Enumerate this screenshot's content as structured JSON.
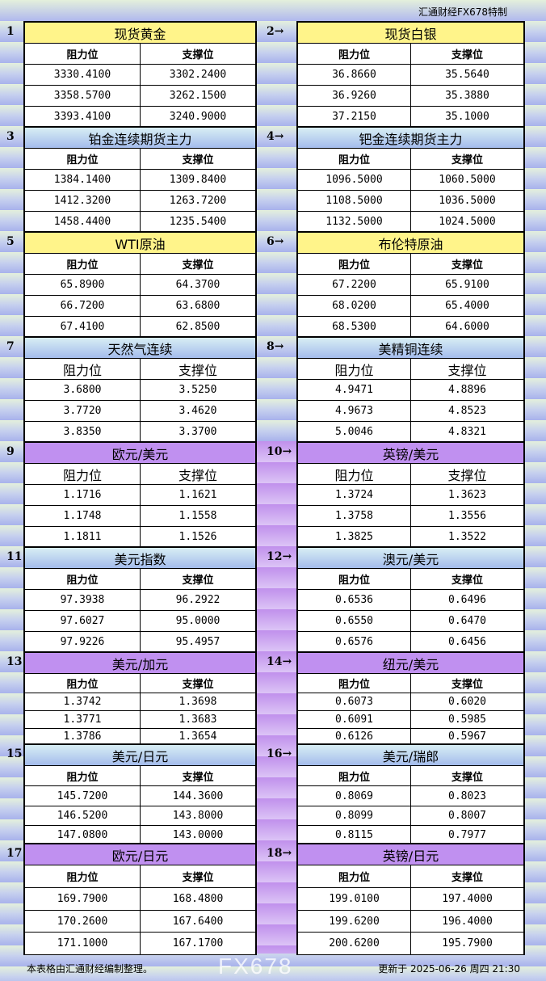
{
  "brand": "汇通财经FX678特制",
  "headers": {
    "resistance": "阻力位",
    "support": "支撑位"
  },
  "colors": {
    "yellow": "#fff48a",
    "blue": "#b4cbee",
    "purple": "#c090f0"
  },
  "sections": [
    {
      "num": "1",
      "title": "现货黄金",
      "color": "yellow",
      "rows": [
        [
          "3330.4100",
          "3302.2400"
        ],
        [
          "3358.5700",
          "3262.1500"
        ],
        [
          "3393.4100",
          "3240.9000"
        ]
      ]
    },
    {
      "num": "2→",
      "title": "现货白银",
      "color": "yellow",
      "rows": [
        [
          "36.8660",
          "35.5640"
        ],
        [
          "36.9260",
          "35.3880"
        ],
        [
          "37.2150",
          "35.1000"
        ]
      ]
    },
    {
      "num": "3",
      "title": "铂金连续期货主力",
      "color": "blue",
      "rows": [
        [
          "1384.1400",
          "1309.8400"
        ],
        [
          "1412.3200",
          "1263.7200"
        ],
        [
          "1458.4400",
          "1235.5400"
        ]
      ]
    },
    {
      "num": "4→",
      "title": "钯金连续期货主力",
      "color": "blue",
      "rows": [
        [
          "1096.5000",
          "1060.5000"
        ],
        [
          "1108.5000",
          "1036.5000"
        ],
        [
          "1132.5000",
          "1024.5000"
        ]
      ]
    },
    {
      "num": "5",
      "title": "WTI原油",
      "color": "yellow",
      "rows": [
        [
          "65.8900",
          "64.3700"
        ],
        [
          "66.7200",
          "63.6800"
        ],
        [
          "67.4100",
          "62.8500"
        ]
      ]
    },
    {
      "num": "6→",
      "title": "布伦特原油",
      "color": "yellow",
      "rows": [
        [
          "67.2200",
          "65.9100"
        ],
        [
          "68.0200",
          "65.4000"
        ],
        [
          "68.5300",
          "64.6000"
        ]
      ]
    },
    {
      "num": "7",
      "title": "天然气连续",
      "color": "blue",
      "rows": [
        [
          "3.6800",
          "3.5250"
        ],
        [
          "3.7720",
          "3.4620"
        ],
        [
          "3.8350",
          "3.3700"
        ]
      ]
    },
    {
      "num": "8→",
      "title": "美精铜连续",
      "color": "blue",
      "rows": [
        [
          "4.9471",
          "4.8896"
        ],
        [
          "4.9673",
          "4.8523"
        ],
        [
          "5.0046",
          "4.8321"
        ]
      ]
    },
    {
      "num": "9",
      "title": "欧元/美元",
      "color": "purple",
      "rows": [
        [
          "1.1716",
          "1.1621"
        ],
        [
          "1.1748",
          "1.1558"
        ],
        [
          "1.1811",
          "1.1526"
        ]
      ]
    },
    {
      "num": "10→",
      "title": "英镑/美元",
      "color": "purple",
      "rows": [
        [
          "1.3724",
          "1.3623"
        ],
        [
          "1.3758",
          "1.3556"
        ],
        [
          "1.3825",
          "1.3522"
        ]
      ]
    },
    {
      "num": "11",
      "title": "美元指数",
      "color": "blue",
      "rows": [
        [
          "97.3938",
          "96.2922"
        ],
        [
          "97.6027",
          "95.0000"
        ],
        [
          "97.9226",
          "95.4957"
        ]
      ]
    },
    {
      "num": "12→",
      "title": "澳元/美元",
      "color": "blue",
      "rows": [
        [
          "0.6536",
          "0.6496"
        ],
        [
          "0.6550",
          "0.6470"
        ],
        [
          "0.6576",
          "0.6456"
        ]
      ]
    },
    {
      "num": "13",
      "title": "美元/加元",
      "color": "purple",
      "rows": [
        [
          "1.3742",
          "1.3698"
        ],
        [
          "1.3771",
          "1.3683"
        ],
        [
          "1.3786",
          "1.3654"
        ]
      ]
    },
    {
      "num": "14→",
      "title": "纽元/美元",
      "color": "purple",
      "rows": [
        [
          "0.6073",
          "0.6020"
        ],
        [
          "0.6091",
          "0.5985"
        ],
        [
          "0.6126",
          "0.5967"
        ]
      ]
    },
    {
      "num": "15",
      "title": "美元/日元",
      "color": "blue",
      "rows": [
        [
          "145.7200",
          "144.3600"
        ],
        [
          "146.5200",
          "143.8000"
        ],
        [
          "147.0800",
          "143.0000"
        ]
      ]
    },
    {
      "num": "16→",
      "title": "美元/瑞郎",
      "color": "blue",
      "rows": [
        [
          "0.8069",
          "0.8023"
        ],
        [
          "0.8099",
          "0.8007"
        ],
        [
          "0.8115",
          "0.7977"
        ]
      ]
    },
    {
      "num": "17",
      "title": "欧元/日元",
      "color": "purple",
      "rows": [
        [
          "169.7900",
          "168.4800"
        ],
        [
          "170.2600",
          "167.6400"
        ],
        [
          "171.1000",
          "167.1700"
        ]
      ]
    },
    {
      "num": "18→",
      "title": "英镑/日元",
      "color": "purple",
      "rows": [
        [
          "199.0100",
          "197.4000"
        ],
        [
          "199.6200",
          "196.4000"
        ],
        [
          "200.6200",
          "195.7900"
        ]
      ]
    }
  ],
  "footer": {
    "note": "本表格由汇通财经编制整理。",
    "updated": "更新于 2025-06-26 周四 21:30"
  },
  "watermark": "FX678"
}
